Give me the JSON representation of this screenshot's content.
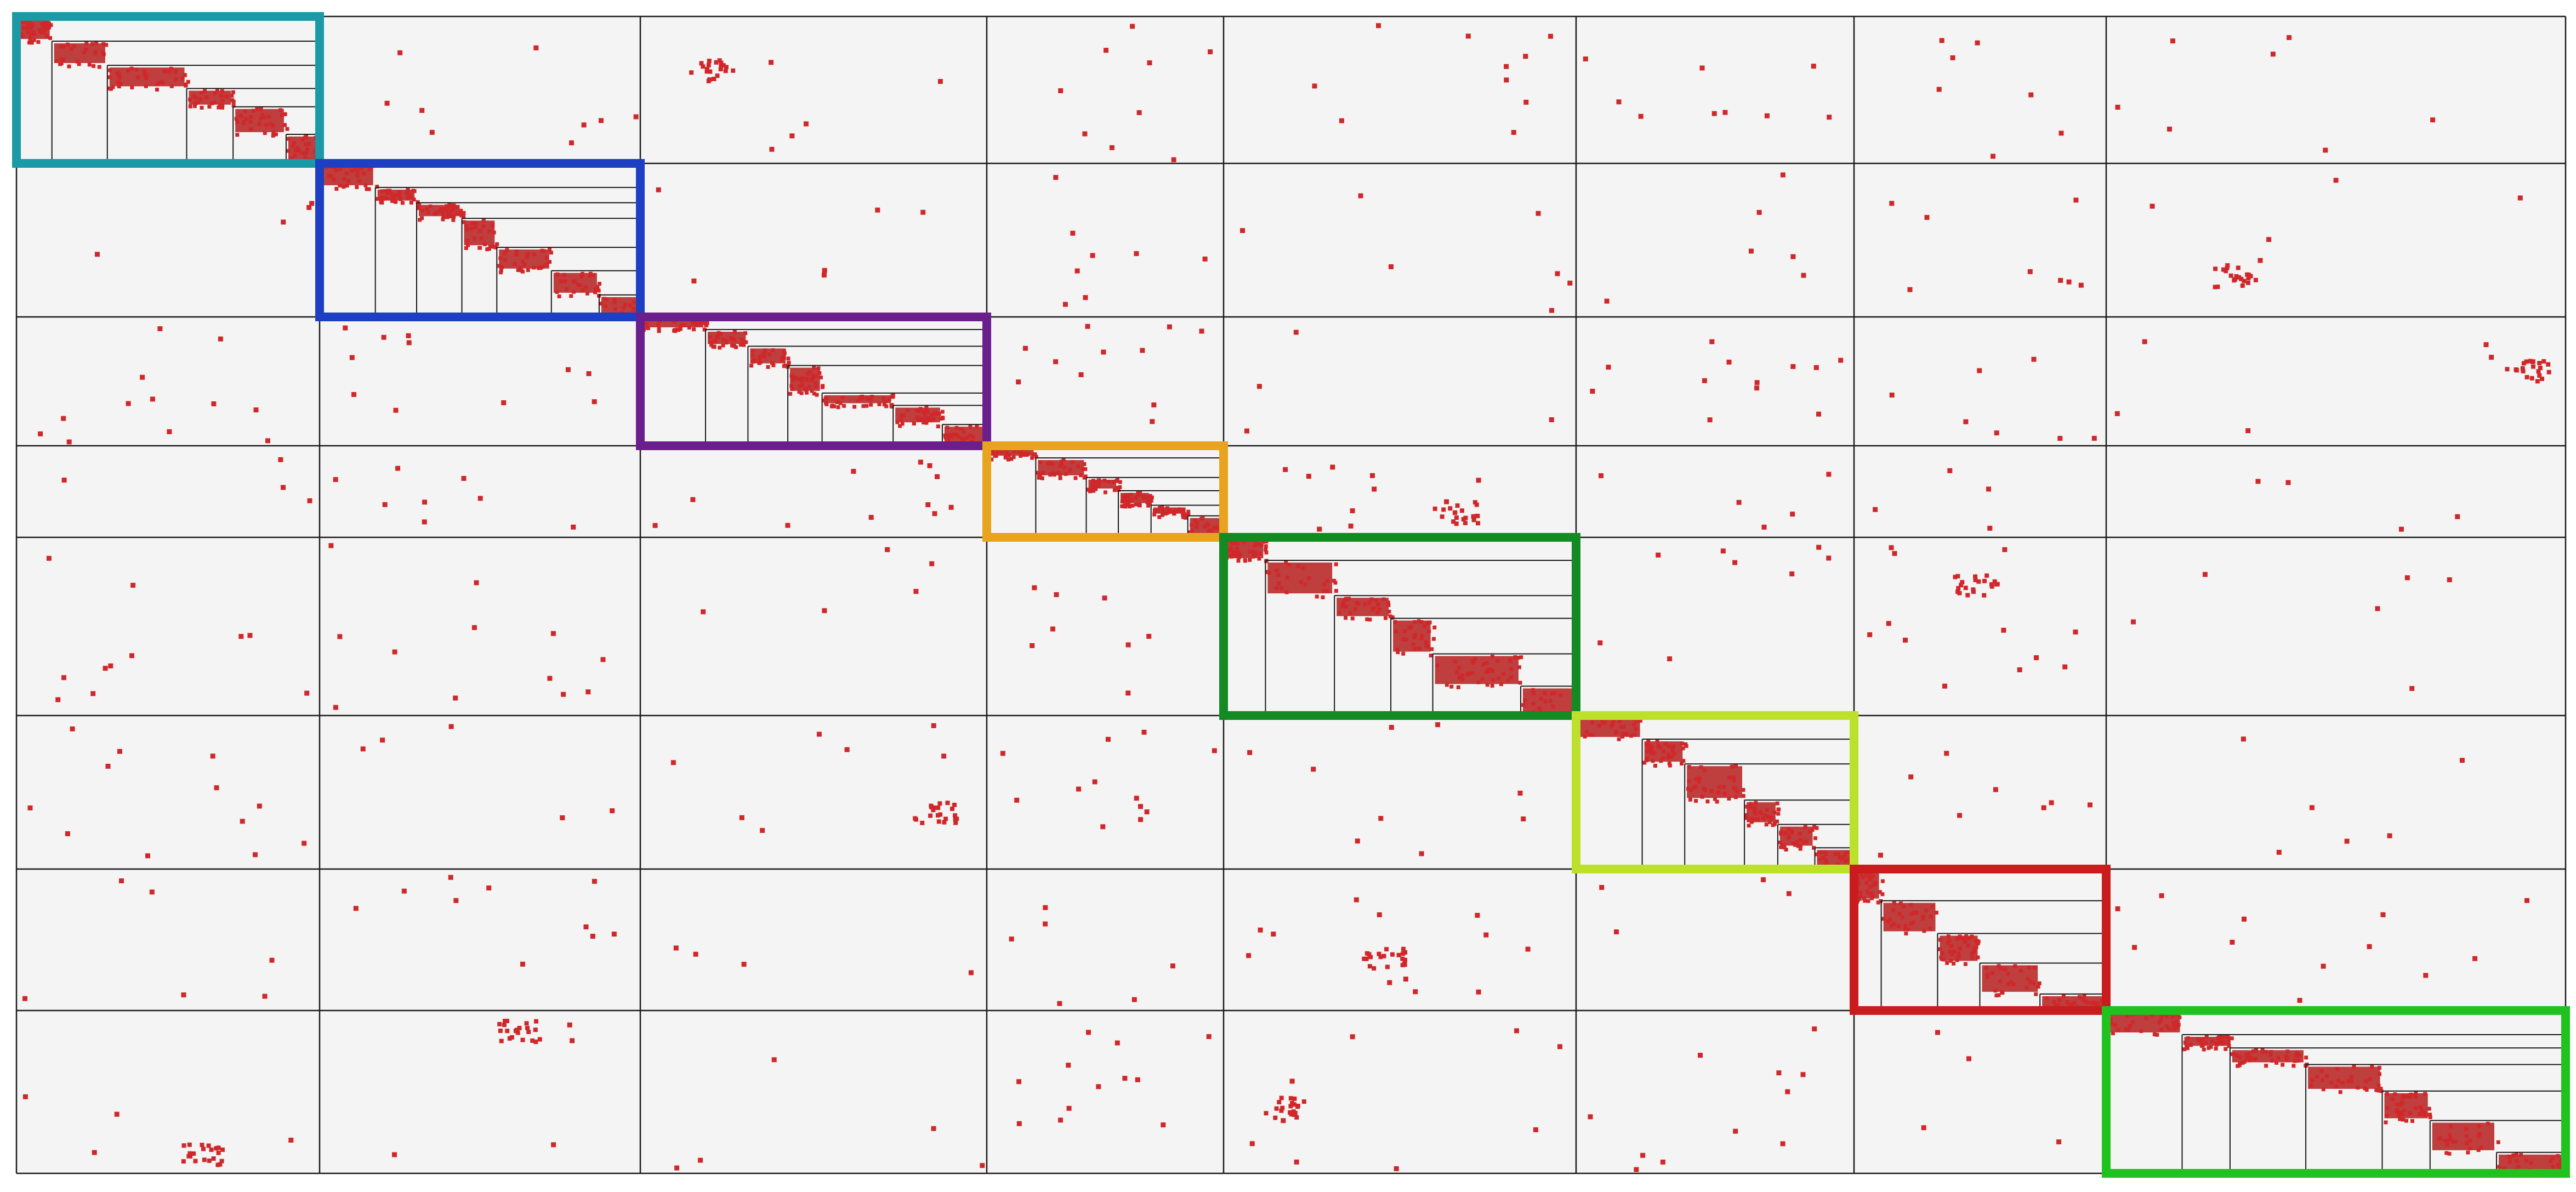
{
  "matrix": {
    "type": "block-diagonal sparse matrix",
    "block_count": 8,
    "colors": {
      "background": "#f4f4f4",
      "grid_line": "#1a1a1a",
      "point": "#d0282a",
      "dense_point": "#b51d1d"
    },
    "blocks": [
      {
        "id": 1,
        "color": "#1a9aa6",
        "sub_blocks": 6
      },
      {
        "id": 2,
        "color": "#1d3fc4",
        "sub_blocks": 7
      },
      {
        "id": 3,
        "color": "#6a1f8c",
        "sub_blocks": 7
      },
      {
        "id": 4,
        "color": "#e8a41e",
        "sub_blocks": 6
      },
      {
        "id": 5,
        "color": "#138a22",
        "sub_blocks": 6
      },
      {
        "id": 6,
        "color": "#bde12b",
        "sub_blocks": 6
      },
      {
        "id": 7,
        "color": "#c91d1d",
        "sub_blocks": 5
      },
      {
        "id": 8,
        "color": "#1fc21f",
        "sub_blocks": 7
      }
    ],
    "off_diagonal_scatter": "sparse"
  }
}
